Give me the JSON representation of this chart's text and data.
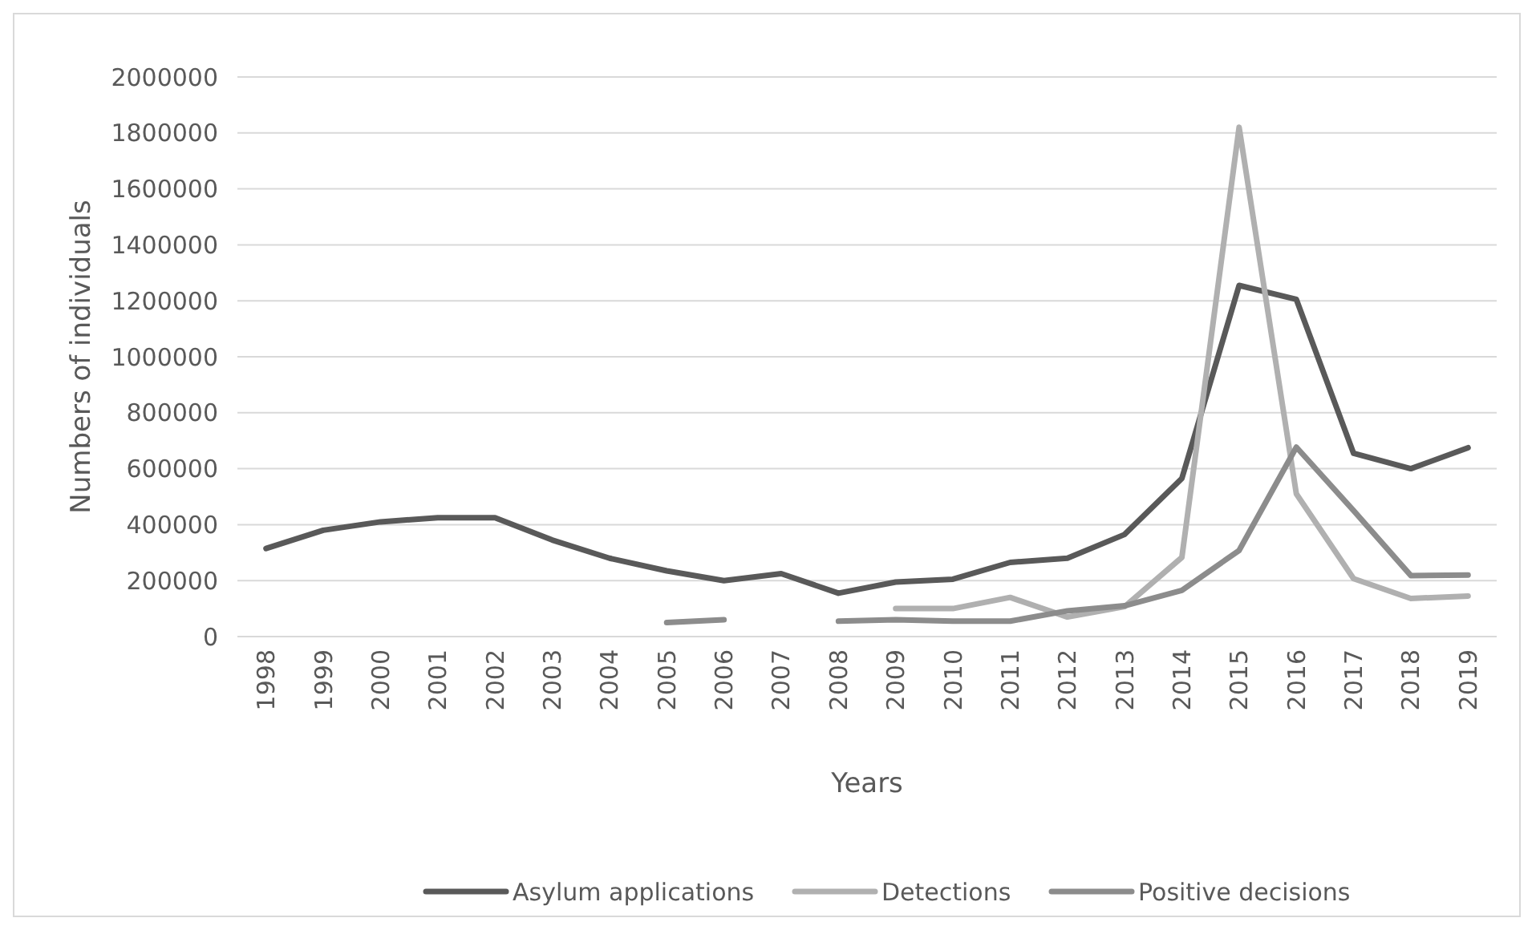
{
  "chart_data": {
    "type": "line",
    "xlabel": "Years",
    "ylabel": "Numbers of individuals",
    "categories": [
      "1998",
      "1999",
      "2000",
      "2001",
      "2002",
      "2003",
      "2004",
      "2005",
      "2006",
      "2007",
      "2008",
      "2009",
      "2010",
      "2011",
      "2012",
      "2013",
      "2014",
      "2015",
      "2016",
      "2017",
      "2018",
      "2019"
    ],
    "series": [
      {
        "name": "Asylum applications",
        "color": "#595959",
        "values": [
          315000,
          380000,
          410000,
          425000,
          425000,
          345000,
          280000,
          235000,
          200000,
          225000,
          155000,
          195000,
          205000,
          265000,
          280000,
          365000,
          565000,
          1255000,
          1205000,
          655000,
          600000,
          675000
        ]
      },
      {
        "name": "Detections",
        "color": "#b0b0b0",
        "values": [
          null,
          null,
          null,
          null,
          null,
          null,
          null,
          null,
          null,
          null,
          null,
          100000,
          100000,
          140000,
          70000,
          107000,
          283000,
          1820000,
          510000,
          207000,
          136000,
          145000
        ]
      },
      {
        "name": "Positive decisions",
        "color": "#8c8c8c",
        "values": [
          null,
          null,
          null,
          null,
          null,
          null,
          null,
          50000,
          60000,
          null,
          55000,
          60000,
          55000,
          55000,
          92000,
          110000,
          165000,
          308000,
          677000,
          450000,
          218000,
          220000
        ]
      }
    ],
    "ylim": [
      0,
      2000000
    ],
    "yticks": [
      0,
      200000,
      400000,
      600000,
      800000,
      1000000,
      1200000,
      1400000,
      1600000,
      1800000,
      2000000
    ],
    "grid": "y",
    "legend": "bottom",
    "line_style": "solid",
    "marker": "none"
  }
}
